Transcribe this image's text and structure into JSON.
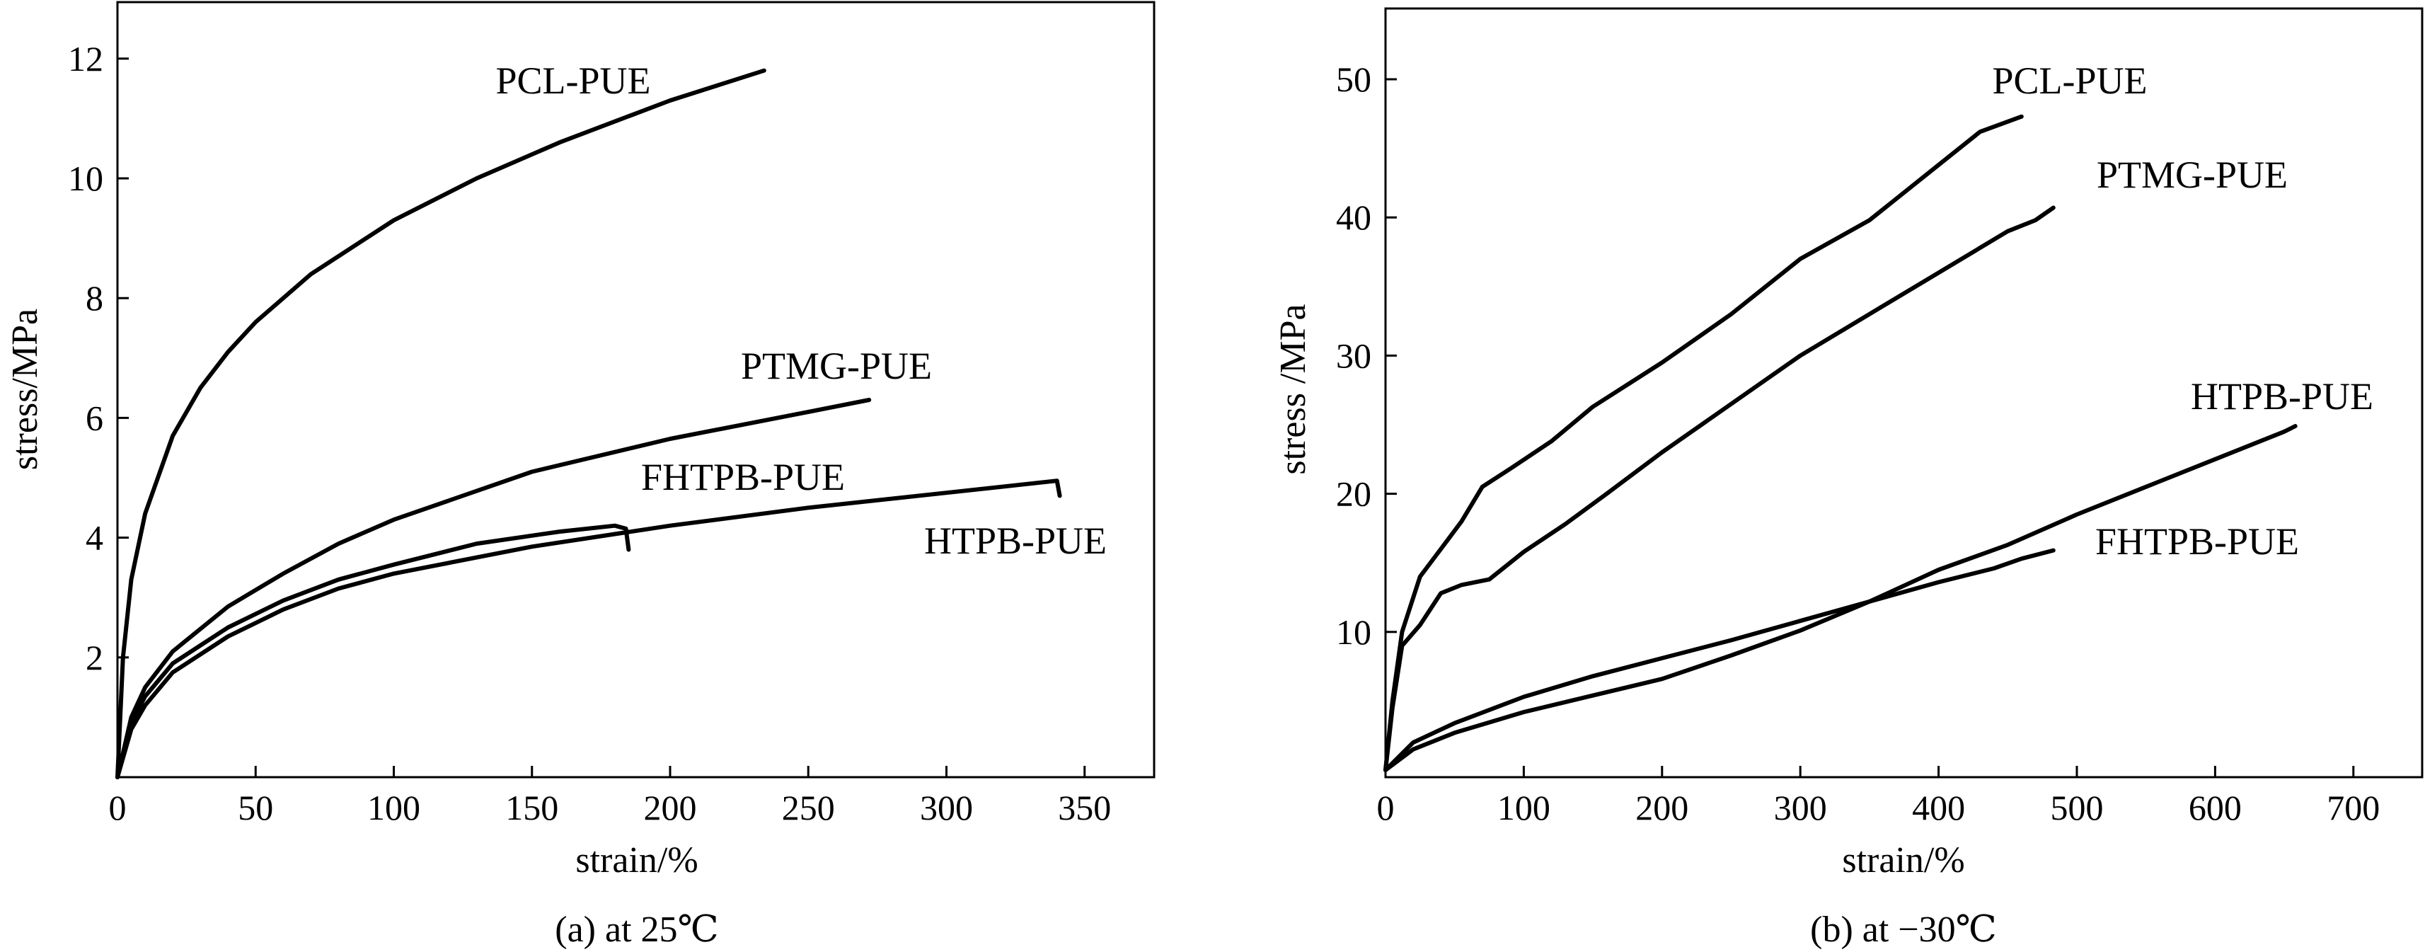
{
  "chart_data": [
    {
      "type": "line",
      "caption": "(a) at 25℃",
      "xlabel": "strain/%",
      "ylabel": "stress/MPa",
      "xlim": [
        0,
        375
      ],
      "ylim": [
        0,
        13
      ],
      "xticks": [
        0,
        50,
        100,
        150,
        200,
        250,
        300,
        350
      ],
      "yticks": [
        2,
        4,
        6,
        8,
        10,
        12
      ],
      "grid": false,
      "series": [
        {
          "name": "PCL-PUE",
          "x": [
            0,
            2,
            5,
            10,
            20,
            30,
            40,
            50,
            70,
            100,
            130,
            160,
            200,
            234
          ],
          "y": [
            0,
            2.0,
            3.3,
            4.4,
            5.7,
            6.5,
            7.1,
            7.6,
            8.4,
            9.3,
            10.0,
            10.6,
            11.3,
            11.8
          ]
        },
        {
          "name": "PTMG-PUE",
          "x": [
            0,
            5,
            10,
            20,
            40,
            60,
            80,
            100,
            150,
            200,
            250,
            272
          ],
          "y": [
            0,
            1.0,
            1.5,
            2.1,
            2.85,
            3.4,
            3.9,
            4.3,
            5.1,
            5.65,
            6.1,
            6.3
          ]
        },
        {
          "name": "FHTPB-PUE",
          "x": [
            0,
            5,
            10,
            20,
            40,
            60,
            80,
            100,
            130,
            160,
            180,
            184,
            185
          ],
          "y": [
            0,
            0.9,
            1.35,
            1.9,
            2.5,
            2.95,
            3.3,
            3.55,
            3.9,
            4.1,
            4.2,
            4.15,
            3.8
          ]
        },
        {
          "name": "HTPB-PUE",
          "x": [
            0,
            5,
            10,
            20,
            40,
            60,
            80,
            100,
            150,
            200,
            250,
            300,
            340,
            341
          ],
          "y": [
            0,
            0.8,
            1.2,
            1.75,
            2.35,
            2.8,
            3.15,
            3.4,
            3.85,
            4.2,
            4.5,
            4.75,
            4.95,
            4.7
          ]
        }
      ]
    },
    {
      "type": "line",
      "caption": "(b) at −30℃",
      "xlabel": "strain/%",
      "ylabel": "stress /MPa",
      "xlim": [
        0,
        750
      ],
      "ylim": [
        0,
        55
      ],
      "xticks": [
        0,
        100,
        200,
        300,
        400,
        500,
        600,
        700
      ],
      "yticks": [
        10,
        20,
        30,
        40,
        50
      ],
      "grid": false,
      "series": [
        {
          "name": "PCL-PUE",
          "x": [
            0,
            5,
            12,
            25,
            40,
            55,
            70,
            90,
            120,
            150,
            200,
            250,
            300,
            350,
            400,
            430,
            460
          ],
          "y": [
            0,
            5,
            10,
            14,
            16,
            18,
            20.5,
            21.8,
            23.8,
            26.3,
            29.5,
            33,
            37,
            39.8,
            43.8,
            46.2,
            47.3
          ]
        },
        {
          "name": "PTMG-PUE",
          "x": [
            0,
            5,
            12,
            25,
            40,
            55,
            75,
            100,
            130,
            160,
            200,
            250,
            300,
            350,
            400,
            450,
            470,
            483
          ],
          "y": [
            0,
            4.5,
            9,
            10.5,
            12.8,
            13.4,
            13.8,
            15.8,
            17.8,
            20,
            23,
            26.5,
            30,
            33,
            36,
            39,
            39.8,
            40.7
          ]
        },
        {
          "name": "HTPB-PUE",
          "x": [
            0,
            20,
            50,
            100,
            150,
            200,
            250,
            300,
            350,
            400,
            450,
            500,
            550,
            600,
            650,
            658
          ],
          "y": [
            0,
            1.5,
            2.7,
            4.2,
            5.4,
            6.6,
            8.3,
            10.1,
            12.2,
            14.5,
            16.3,
            18.5,
            20.5,
            22.5,
            24.5,
            24.9
          ]
        },
        {
          "name": "FHTPB-PUE",
          "x": [
            0,
            20,
            50,
            100,
            150,
            200,
            250,
            300,
            350,
            400,
            440,
            460,
            483
          ],
          "y": [
            0,
            2,
            3.4,
            5.3,
            6.8,
            8.1,
            9.4,
            10.8,
            12.2,
            13.6,
            14.6,
            15.3,
            15.9
          ]
        }
      ]
    }
  ]
}
